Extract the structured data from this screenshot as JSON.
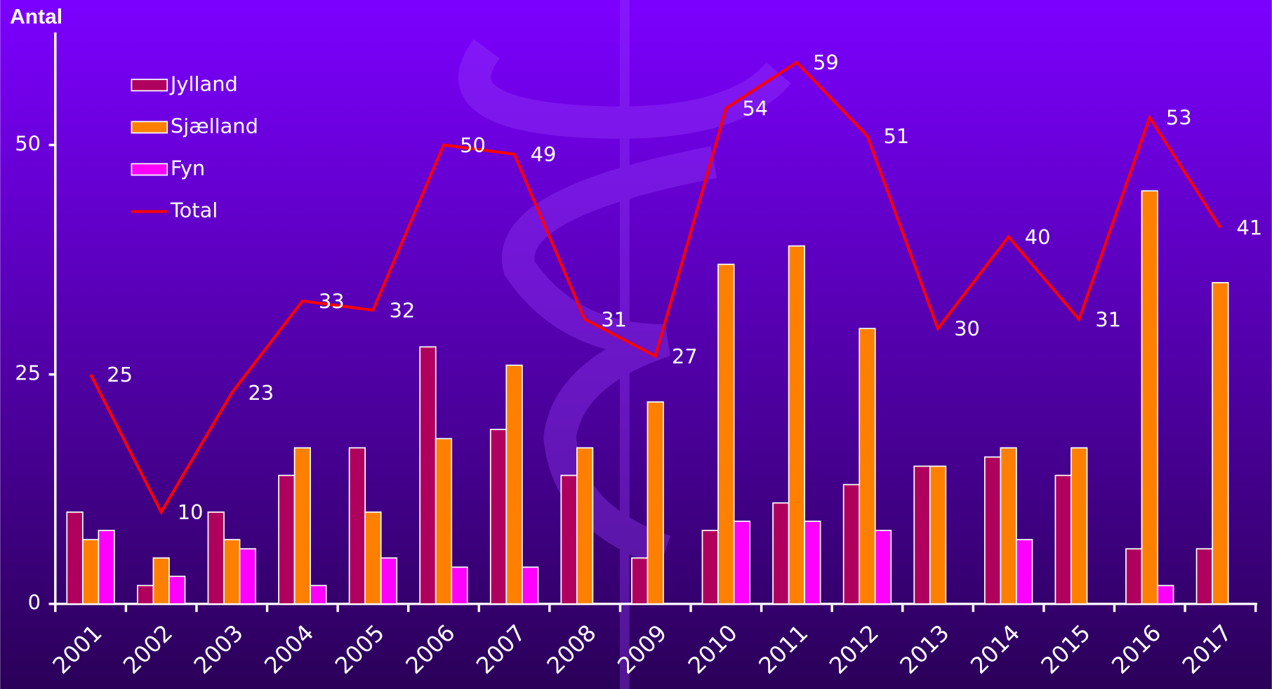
{
  "chart_data": {
    "type": "bar_line",
    "y_label": "Antal",
    "categories": [
      "2001",
      "2002",
      "2003",
      "2004",
      "2005",
      "2006",
      "2007",
      "2008",
      "2009",
      "2010",
      "2011",
      "2012",
      "2013",
      "2014",
      "2015",
      "2016",
      "2017"
    ],
    "series": [
      {
        "name": "Jylland",
        "type": "bar",
        "color": "#b0005e",
        "values": [
          10,
          2,
          10,
          14,
          17,
          28,
          19,
          14,
          5,
          8,
          11,
          13,
          15,
          16,
          14,
          6,
          6
        ]
      },
      {
        "name": "Sjælland",
        "type": "bar",
        "color": "#ff8000",
        "values": [
          7,
          5,
          7,
          17,
          10,
          18,
          26,
          17,
          22,
          37,
          39,
          30,
          15,
          17,
          17,
          45,
          35
        ]
      },
      {
        "name": "Fyn",
        "type": "bar",
        "color": "#ff00ff",
        "values": [
          8,
          3,
          6,
          2,
          5,
          4,
          4,
          0,
          0,
          9,
          9,
          8,
          0,
          7,
          0,
          2,
          0
        ]
      },
      {
        "name": "Total",
        "type": "line",
        "color": "#ff0000",
        "values": [
          25,
          10,
          23,
          33,
          32,
          50,
          49,
          31,
          27,
          54,
          59,
          51,
          30,
          40,
          31,
          53,
          41
        ]
      }
    ],
    "ylim": [
      0,
      62
    ],
    "yticks": [
      0,
      25,
      50
    ],
    "grid": false,
    "legend": "top-left"
  }
}
